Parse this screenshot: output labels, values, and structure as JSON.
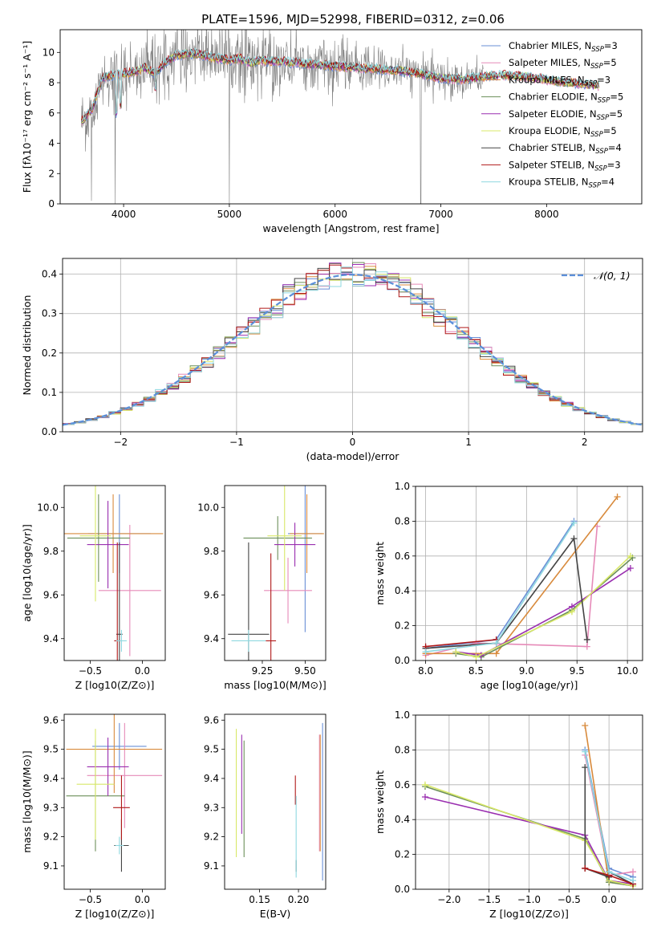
{
  "figure_title": "PLATE=1596, MJD=52998, FIBERID=0312, z=0.06",
  "colors": {
    "Chabrier MILES": "#6a8fd6",
    "Salpeter MILES": "#e68ab8",
    "Kroupa MILES": "#d88a3c",
    "Chabrier ELODIE": "#6c8f5a",
    "Salpeter ELODIE": "#9a2fb0",
    "Kroupa ELODIE": "#d8e868",
    "Chabrier STELIB": "#444444",
    "Salpeter STELIB": "#b01818",
    "Kroupa STELIB": "#8fd8e0",
    "data": "#808080",
    "gaussian": "#5b8fd9"
  },
  "chart_data": [
    {
      "id": "spectrum",
      "type": "line",
      "title": "PLATE=1596, MJD=52998, FIBERID=0312, z=0.06",
      "xlabel": "wavelength [Angstrom, rest frame]",
      "ylabel": "Flux [fλ10⁻¹⁷ erg cm⁻² s⁻¹ A⁻¹]",
      "xlim": [
        3400,
        8900
      ],
      "ylim": [
        0,
        11.5
      ],
      "xticks": [
        4000,
        5000,
        6000,
        7000,
        8000
      ],
      "yticks": [
        0,
        2,
        4,
        6,
        8,
        10
      ],
      "legend": {
        "placement": "right",
        "entries": [
          {
            "name": "Chabrier MILES",
            "label": "Chabrier MILES, N",
            "sub": "SSP",
            "suffix": "=3"
          },
          {
            "name": "Salpeter MILES",
            "label": "Salpeter MILES, N",
            "sub": "SSP",
            "suffix": "=5"
          },
          {
            "name": "Kroupa MILES",
            "label": "Kroupa MILES, N",
            "sub": "SSP",
            "suffix": "=3"
          },
          {
            "name": "Chabrier ELODIE",
            "label": "Chabrier ELODIE, N",
            "sub": "SSP",
            "suffix": "=5"
          },
          {
            "name": "Salpeter ELODIE",
            "label": "Salpeter ELODIE, N",
            "sub": "SSP",
            "suffix": "=5"
          },
          {
            "name": "Kroupa ELODIE",
            "label": "Kroupa ELODIE, N",
            "sub": "SSP",
            "suffix": "=5"
          },
          {
            "name": "Chabrier STELIB",
            "label": "Chabrier STELIB, N",
            "sub": "SSP",
            "suffix": "=4"
          },
          {
            "name": "Salpeter STELIB",
            "label": "Salpeter STELIB, N",
            "sub": "SSP",
            "suffix": "=3"
          },
          {
            "name": "Kroupa STELIB",
            "label": "Kroupa STELIB, N",
            "sub": "SSP",
            "suffix": "=4"
          }
        ]
      },
      "continuum": [
        [
          3600,
          5.4
        ],
        [
          3700,
          6.2
        ],
        [
          3800,
          8.3
        ],
        [
          3900,
          8.5
        ],
        [
          4000,
          8.6
        ],
        [
          4100,
          8.7
        ],
        [
          4200,
          9.0
        ],
        [
          4300,
          8.6
        ],
        [
          4400,
          9.4
        ],
        [
          4500,
          9.8
        ],
        [
          4600,
          9.9
        ],
        [
          4700,
          9.9
        ],
        [
          4800,
          9.7
        ],
        [
          4900,
          9.6
        ],
        [
          5000,
          9.5
        ],
        [
          5100,
          9.6
        ],
        [
          5200,
          9.3
        ],
        [
          5300,
          9.5
        ],
        [
          5400,
          9.4
        ],
        [
          5500,
          9.4
        ],
        [
          5600,
          9.3
        ],
        [
          5800,
          9.2
        ],
        [
          6000,
          9.1
        ],
        [
          6200,
          9.0
        ],
        [
          6400,
          8.9
        ],
        [
          6600,
          8.8
        ],
        [
          6800,
          8.6
        ],
        [
          7000,
          8.3
        ],
        [
          7200,
          8.2
        ],
        [
          7400,
          8.4
        ],
        [
          7600,
          8.5
        ],
        [
          7800,
          8.4
        ],
        [
          8000,
          8.2
        ],
        [
          8200,
          8.0
        ],
        [
          8400,
          7.9
        ],
        [
          8500,
          7.8
        ]
      ],
      "model_range": [
        3600,
        8500
      ],
      "data_range": [
        3600,
        7400
      ]
    },
    {
      "id": "residuals",
      "type": "line",
      "xlabel": "(data-model)/error",
      "ylabel": "Normed distribution",
      "xlim": [
        -2.5,
        2.5
      ],
      "ylim": [
        0,
        0.44
      ],
      "xticks": [
        -2,
        -1,
        0,
        1,
        2
      ],
      "yticks": [
        0.0,
        0.1,
        0.2,
        0.3,
        0.4
      ],
      "gaussian": {
        "label": "𝒩(0, 1)",
        "mean": 0,
        "sigma": 1
      },
      "bins": {
        "start": -2.5,
        "width": 0.1,
        "count": 50
      }
    },
    {
      "id": "age-vs-Z",
      "type": "scatter",
      "xlabel": "Z [log10(Z/Z⊙)]",
      "ylabel": "age  [log10(age/yr)]",
      "xlim": [
        -0.75,
        0.22
      ],
      "ylim": [
        9.3,
        10.1
      ],
      "xticks": [
        -0.5,
        0.0
      ],
      "yticks": [
        9.4,
        9.6,
        9.8,
        10.0
      ],
      "points": [
        {
          "series": "Chabrier MILES",
          "x": -0.22,
          "y": 9.88,
          "xerr": 0.3,
          "yerr": 0.18
        },
        {
          "series": "Salpeter MILES",
          "x": -0.12,
          "y": 9.62,
          "xerr": 0.3,
          "yerr": 0.3
        },
        {
          "series": "Kroupa MILES",
          "x": -0.28,
          "y": 9.88,
          "xerr": 0.48,
          "yerr": 0.18
        },
        {
          "series": "Chabrier ELODIE",
          "x": -0.42,
          "y": 9.86,
          "xerr": 0.3,
          "yerr": 0.2
        },
        {
          "series": "Salpeter ELODIE",
          "x": -0.33,
          "y": 9.83,
          "xerr": 0.2,
          "yerr": 0.2
        },
        {
          "series": "Kroupa ELODIE",
          "x": -0.45,
          "y": 9.87,
          "xerr": 0.15,
          "yerr": 0.3
        },
        {
          "series": "Chabrier STELIB",
          "x": -0.22,
          "y": 9.42,
          "xerr": 0.03,
          "yerr": 0.42
        },
        {
          "series": "Salpeter STELIB",
          "x": -0.24,
          "y": 9.39,
          "xerr": 0.03,
          "yerr": 0.45
        },
        {
          "series": "Kroupa STELIB",
          "x": -0.2,
          "y": 9.39,
          "xerr": 0.05,
          "yerr": 0.05
        }
      ]
    },
    {
      "id": "age-vs-mass",
      "type": "scatter",
      "xlabel": "mass [log10(M/M⊙)]",
      "ylabel": "",
      "xlim": [
        9.03,
        9.62
      ],
      "ylim": [
        9.3,
        10.1
      ],
      "xticks": [
        9.25,
        9.5
      ],
      "yticks": [
        9.4,
        9.6,
        9.8,
        10.0
      ],
      "points": [
        {
          "series": "Chabrier MILES",
          "x": 9.5,
          "y": 9.88,
          "xerr": 0.1,
          "yerr": 0.45
        },
        {
          "series": "Salpeter MILES",
          "x": 9.4,
          "y": 9.62,
          "xerr": 0.14,
          "yerr": 0.15
        },
        {
          "series": "Kroupa MILES",
          "x": 9.51,
          "y": 9.88,
          "xerr": 0.1,
          "yerr": 0.18
        },
        {
          "series": "Chabrier ELODIE",
          "x": 9.34,
          "y": 9.86,
          "xerr": 0.2,
          "yerr": 0.1
        },
        {
          "series": "Salpeter ELODIE",
          "x": 9.44,
          "y": 9.83,
          "xerr": 0.12,
          "yerr": 0.1
        },
        {
          "series": "Kroupa ELODIE",
          "x": 9.38,
          "y": 9.87,
          "xerr": 0.1,
          "yerr": 0.25
        },
        {
          "series": "Chabrier STELIB",
          "x": 9.17,
          "y": 9.42,
          "xerr": 0.12,
          "yerr": 0.42
        },
        {
          "series": "Salpeter STELIB",
          "x": 9.3,
          "y": 9.39,
          "xerr": 0.03,
          "yerr": 0.4
        },
        {
          "series": "Kroupa STELIB",
          "x": 9.17,
          "y": 9.39,
          "xerr": 0.1,
          "yerr": 0.05
        }
      ]
    },
    {
      "id": "weights-vs-age",
      "type": "line",
      "xlabel": "age  [log10(age/yr)]",
      "ylabel": "mass weight",
      "xlim": [
        7.9,
        10.15
      ],
      "ylim": [
        0,
        1.0
      ],
      "xticks": [
        8.0,
        8.5,
        9.0,
        9.5,
        10.0
      ],
      "yticks": [
        0.0,
        0.2,
        0.4,
        0.6,
        0.8,
        1.0
      ],
      "series": [
        {
          "name": "Chabrier MILES",
          "x": [
            8.0,
            8.7,
            9.47
          ],
          "y": [
            0.07,
            0.12,
            0.8
          ]
        },
        {
          "name": "Salpeter MILES",
          "x": [
            8.0,
            8.5,
            9.6,
            9.7
          ],
          "y": [
            0.03,
            0.1,
            0.08,
            0.77
          ]
        },
        {
          "name": "Kroupa MILES",
          "x": [
            8.0,
            8.7,
            9.9
          ],
          "y": [
            0.04,
            0.04,
            0.94
          ]
        },
        {
          "name": "Chabrier ELODIE",
          "x": [
            8.3,
            8.55,
            9.45,
            10.05
          ],
          "y": [
            0.04,
            0.02,
            0.29,
            0.59
          ]
        },
        {
          "name": "Salpeter ELODIE",
          "x": [
            8.3,
            8.55,
            9.45,
            10.03
          ],
          "y": [
            0.05,
            0.03,
            0.31,
            0.53
          ]
        },
        {
          "name": "Kroupa ELODIE",
          "x": [
            8.3,
            8.5,
            9.45,
            10.03
          ],
          "y": [
            0.05,
            0.02,
            0.28,
            0.6
          ]
        },
        {
          "name": "Chabrier STELIB",
          "x": [
            8.0,
            8.7,
            9.47,
            9.6
          ],
          "y": [
            0.07,
            0.1,
            0.7,
            0.12
          ]
        },
        {
          "name": "Salpeter STELIB",
          "x": [
            8.0,
            8.7
          ],
          "y": [
            0.08,
            0.12
          ]
        },
        {
          "name": "Kroupa STELIB",
          "x": [
            8.0,
            8.7,
            9.47
          ],
          "y": [
            0.05,
            0.1,
            0.79
          ]
        }
      ]
    },
    {
      "id": "mass-vs-Z",
      "type": "scatter",
      "xlabel": "Z [log10(Z/Z⊙)]",
      "ylabel": "mass [log10(M/M⊙)]",
      "xlim": [
        -0.75,
        0.22
      ],
      "ylim": [
        9.02,
        9.62
      ],
      "xticks": [
        -0.5,
        0.0
      ],
      "yticks": [
        9.1,
        9.2,
        9.3,
        9.4,
        9.5,
        9.6
      ],
      "points": [
        {
          "series": "Chabrier MILES",
          "x": -0.22,
          "y": 9.51,
          "xerr": 0.26,
          "yerr": 0.08
        },
        {
          "series": "Salpeter MILES",
          "x": -0.17,
          "y": 9.41,
          "xerr": 0.36,
          "yerr": 0.18
        },
        {
          "series": "Kroupa MILES",
          "x": -0.27,
          "y": 9.5,
          "xerr": 0.46,
          "yerr": 0.15
        },
        {
          "series": "Chabrier ELODIE",
          "x": -0.45,
          "y": 9.34,
          "xerr": 0.28,
          "yerr": 0.19
        },
        {
          "series": "Salpeter ELODIE",
          "x": -0.33,
          "y": 9.44,
          "xerr": 0.2,
          "yerr": 0.1
        },
        {
          "series": "Kroupa ELODIE",
          "x": -0.45,
          "y": 9.38,
          "xerr": 0.18,
          "yerr": 0.19
        },
        {
          "series": "Chabrier STELIB",
          "x": -0.2,
          "y": 9.17,
          "xerr": 0.07,
          "yerr": 0.09
        },
        {
          "series": "Salpeter STELIB",
          "x": -0.2,
          "y": 9.3,
          "xerr": 0.08,
          "yerr": 0.11
        },
        {
          "series": "Kroupa STELIB",
          "x": -0.22,
          "y": 9.17,
          "xerr": 0.04,
          "yerr": 0.03
        }
      ]
    },
    {
      "id": "mass-vs-EBV",
      "type": "scatter",
      "xlabel": "E(B-V)",
      "ylabel": "",
      "xlim": [
        0.105,
        0.235
      ],
      "ylim": [
        9.02,
        9.62
      ],
      "xticks": [
        0.15,
        0.2
      ],
      "yticks": [
        9.1,
        9.2,
        9.3,
        9.4,
        9.5,
        9.6
      ],
      "points": [
        {
          "series": "Chabrier MILES",
          "x": 0.231,
          "y": 9.32,
          "yerr": 0.27
        },
        {
          "series": "Salpeter MILES",
          "x": 0.227,
          "y": 9.35,
          "yerr": 0.2
        },
        {
          "series": "Kroupa MILES",
          "x": 0.228,
          "y": 9.35,
          "yerr": 0.2
        },
        {
          "series": "Chabrier ELODIE",
          "x": 0.13,
          "y": 9.33,
          "yerr": 0.2
        },
        {
          "series": "Salpeter ELODIE",
          "x": 0.127,
          "y": 9.38,
          "yerr": 0.17
        },
        {
          "series": "Kroupa ELODIE",
          "x": 0.12,
          "y": 9.35,
          "yerr": 0.22
        },
        {
          "series": "Chabrier STELIB",
          "x": 0.197,
          "y": 9.1,
          "yerr": 0.02
        },
        {
          "series": "Salpeter STELIB",
          "x": 0.196,
          "y": 9.36,
          "yerr": 0.05
        },
        {
          "series": "Kroupa STELIB",
          "x": 0.197,
          "y": 9.2,
          "yerr": 0.14
        }
      ]
    },
    {
      "id": "weights-vs-Z",
      "type": "line",
      "xlabel": "Z [log10(Z/Z⊙)]",
      "ylabel": "mass weight",
      "xlim": [
        -2.42,
        0.42
      ],
      "ylim": [
        0,
        1.0
      ],
      "xticks": [
        -2.0,
        -1.5,
        -1.0,
        -0.5,
        0.0
      ],
      "yticks": [
        0.0,
        0.2,
        0.4,
        0.6,
        0.8,
        1.0
      ],
      "series": [
        {
          "name": "Chabrier MILES",
          "x": [
            -0.3,
            0.0,
            0.3
          ],
          "y": [
            0.8,
            0.12,
            0.07
          ]
        },
        {
          "name": "Salpeter MILES",
          "x": [
            -0.3,
            0.0,
            0.3
          ],
          "y": [
            0.77,
            0.08,
            0.1
          ]
        },
        {
          "name": "Kroupa MILES",
          "x": [
            -0.3,
            0.0,
            0.3
          ],
          "y": [
            0.94,
            0.04,
            0.02
          ]
        },
        {
          "name": "Chabrier ELODIE",
          "x": [
            -2.3,
            -0.3,
            0.0,
            0.3
          ],
          "y": [
            0.59,
            0.29,
            0.04,
            0.02
          ]
        },
        {
          "name": "Salpeter ELODIE",
          "x": [
            -2.3,
            -0.3,
            0.0,
            0.3
          ],
          "y": [
            0.53,
            0.31,
            0.05,
            0.03
          ]
        },
        {
          "name": "Kroupa ELODIE",
          "x": [
            -2.3,
            -0.3,
            0.0,
            0.3
          ],
          "y": [
            0.6,
            0.28,
            0.05,
            0.02
          ]
        },
        {
          "name": "Chabrier STELIB",
          "x": [
            -0.3,
            -0.3,
            0.0,
            0.0,
            0.3
          ],
          "y": [
            0.7,
            0.12,
            0.07,
            0.1,
            0.03
          ]
        },
        {
          "name": "Salpeter STELIB",
          "x": [
            -0.3,
            0.0,
            0.3
          ],
          "y": [
            0.12,
            0.08,
            0.03
          ]
        },
        {
          "name": "Kroupa STELIB",
          "x": [
            -0.3,
            0.0,
            0.3
          ],
          "y": [
            0.79,
            0.1,
            0.05
          ]
        }
      ]
    }
  ]
}
